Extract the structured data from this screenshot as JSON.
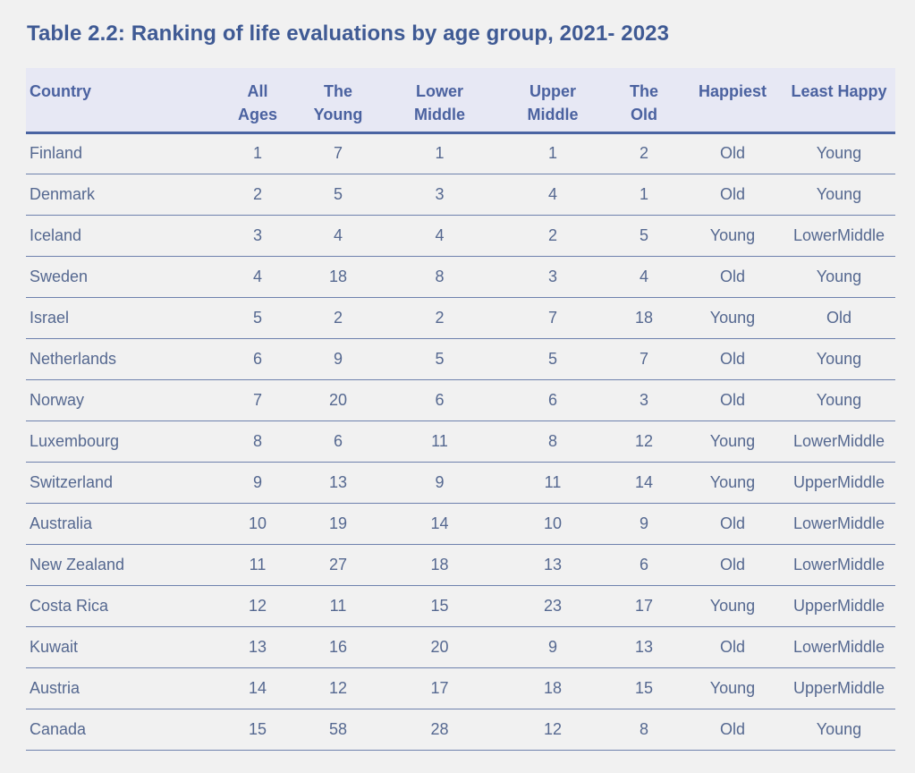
{
  "title": "Table 2.2: Ranking of life evaluations by age group, 2021- 2023",
  "columns": [
    {
      "line1": "Country",
      "line2": ""
    },
    {
      "line1": "All",
      "line2": "Ages"
    },
    {
      "line1": "The",
      "line2": "Young"
    },
    {
      "line1": "Lower",
      "line2": "Middle"
    },
    {
      "line1": "Upper",
      "line2": "Middle"
    },
    {
      "line1": "The",
      "line2": "Old"
    },
    {
      "line1": "Happiest",
      "line2": ""
    },
    {
      "line1": "Least Happy",
      "line2": ""
    }
  ],
  "rows": [
    [
      "Finland",
      "1",
      "7",
      "1",
      "1",
      "2",
      "Old",
      "Young"
    ],
    [
      "Denmark",
      "2",
      "5",
      "3",
      "4",
      "1",
      "Old",
      "Young"
    ],
    [
      "Iceland",
      "3",
      "4",
      "4",
      "2",
      "5",
      "Young",
      "LowerMiddle"
    ],
    [
      "Sweden",
      "4",
      "18",
      "8",
      "3",
      "4",
      "Old",
      "Young"
    ],
    [
      "Israel",
      "5",
      "2",
      "2",
      "7",
      "18",
      "Young",
      "Old"
    ],
    [
      "Netherlands",
      "6",
      "9",
      "5",
      "5",
      "7",
      "Old",
      "Young"
    ],
    [
      "Norway",
      "7",
      "20",
      "6",
      "6",
      "3",
      "Old",
      "Young"
    ],
    [
      "Luxembourg",
      "8",
      "6",
      "11",
      "8",
      "12",
      "Young",
      "LowerMiddle"
    ],
    [
      "Switzerland",
      "9",
      "13",
      "9",
      "11",
      "14",
      "Young",
      "UpperMiddle"
    ],
    [
      "Australia",
      "10",
      "19",
      "14",
      "10",
      "9",
      "Old",
      "LowerMiddle"
    ],
    [
      "New Zealand",
      "11",
      "27",
      "18",
      "13",
      "6",
      "Old",
      "LowerMiddle"
    ],
    [
      "Costa Rica",
      "12",
      "11",
      "15",
      "23",
      "17",
      "Young",
      "UpperMiddle"
    ],
    [
      "Kuwait",
      "13",
      "16",
      "20",
      "9",
      "13",
      "Old",
      "LowerMiddle"
    ],
    [
      "Austria",
      "14",
      "12",
      "17",
      "18",
      "15",
      "Young",
      "UpperMiddle"
    ],
    [
      "Canada",
      "15",
      "58",
      "28",
      "12",
      "8",
      "Old",
      "Young"
    ]
  ]
}
